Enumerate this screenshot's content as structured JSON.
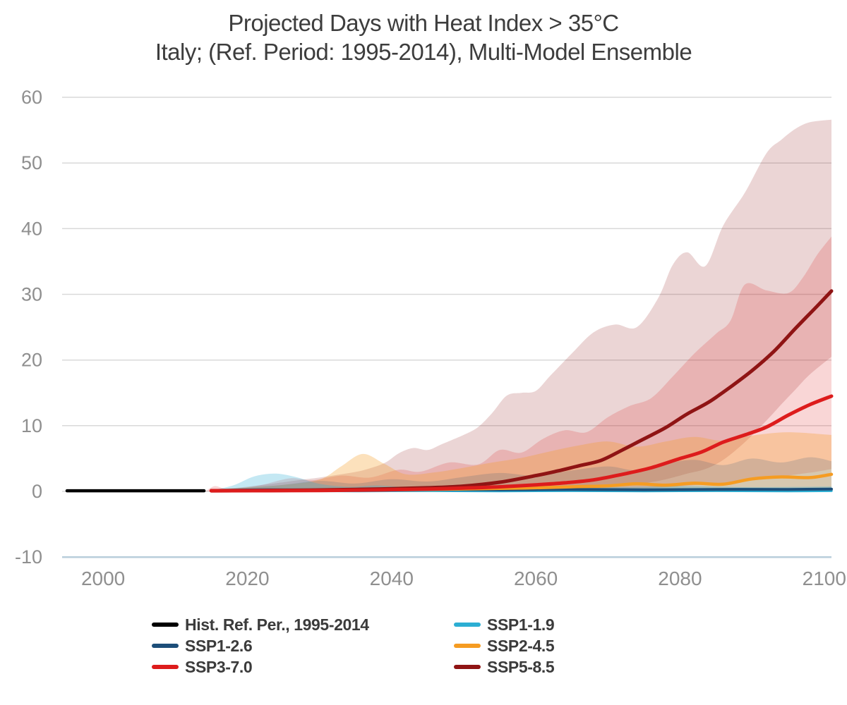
{
  "chart_data": {
    "type": "line",
    "title": "Projected Days with Heat Index > 35°C",
    "subtitle": "Italy; (Ref. Period: 1995-2014), Multi-Model Ensemble",
    "xlabel": "",
    "ylabel": "",
    "xlim": [
      1994.3,
      2101.8
    ],
    "ylim": [
      -10,
      60
    ],
    "x_ticks": [
      2000,
      2020,
      2040,
      2060,
      2080,
      2100
    ],
    "y_ticks": [
      -10,
      0,
      10,
      20,
      30,
      40,
      50,
      60
    ],
    "grid": true,
    "legend_position": "bottom",
    "grid_color": "#d9d9d9",
    "baseline_color": "#b9cedb",
    "tick_label_color": "#8f8f8f",
    "title_color": "#3d3d3d",
    "bands": [
      {
        "id": "band-ssp5-8.5",
        "name": "SSP5-8.5 range",
        "color": "#8f1414",
        "opacity": 0.18,
        "x": [
          2015,
          2019,
          2023,
          2027,
          2030,
          2033,
          2036,
          2039,
          2041,
          2043,
          2045,
          2047,
          2050,
          2052,
          2054,
          2056,
          2058,
          2060,
          2062,
          2065,
          2068,
          2071,
          2074,
          2077,
          2079,
          2081,
          2083.5,
          2086,
          2089,
          2092,
          2094,
          2096,
          2098,
          2101
        ],
        "high": [
          0.3,
          0.6,
          1.1,
          1.7,
          2.1,
          2.6,
          3.2,
          4.3,
          5.8,
          6.6,
          6.3,
          7.2,
          8.6,
          9.8,
          12.0,
          14.6,
          15.0,
          15.3,
          17.6,
          21.0,
          24.2,
          25.4,
          25.0,
          29.5,
          34.5,
          36.4,
          34.3,
          40.5,
          45.5,
          51.5,
          53.5,
          55.2,
          56.2,
          56.6
        ],
        "low": [
          0,
          0,
          0,
          0,
          0,
          0,
          0,
          0,
          0,
          0,
          0,
          0,
          0.1,
          0.12,
          0.15,
          0.18,
          0.2,
          0.25,
          0.3,
          0.45,
          0.6,
          0.8,
          1.1,
          1.6,
          2.1,
          2.7,
          3.4,
          4.8,
          7.5,
          10.8,
          13.2,
          15.5,
          17.8,
          20.5
        ]
      },
      {
        "id": "band-ssp3-7.0",
        "name": "SSP3-7.0 range",
        "color": "#dd1c1c",
        "opacity": 0.18,
        "x": [
          2014.3,
          2015.5,
          2017,
          2019,
          2022,
          2026,
          2029,
          2033,
          2037,
          2041,
          2044,
          2048,
          2052,
          2055,
          2058,
          2061,
          2064,
          2067,
          2070,
          2073,
          2076,
          2079,
          2082,
          2085,
          2087,
          2089,
          2092,
          2095,
          2097,
          2099,
          2101
        ],
        "high": [
          0.1,
          0.8,
          0.4,
          0.5,
          1.0,
          2.0,
          1.7,
          2.4,
          2.1,
          3.3,
          3.0,
          4.4,
          4.1,
          6.3,
          5.9,
          8.0,
          9.3,
          9.0,
          11.3,
          13.0,
          14.2,
          17.5,
          21.0,
          24.0,
          26.0,
          31.5,
          30.6,
          30.2,
          32.5,
          36.0,
          38.8
        ],
        "low": [
          0,
          0,
          0,
          0,
          0,
          0,
          0,
          0,
          0,
          0,
          0,
          0,
          0,
          0,
          0,
          0,
          0,
          0,
          0.2,
          0.35,
          0.5,
          0.7,
          0.95,
          1.2,
          1.35,
          1.55,
          1.9,
          2.4,
          2.7,
          3.0,
          3.4
        ]
      },
      {
        "id": "band-ssp2-4.5",
        "name": "SSP2-4.5 range",
        "color": "#f59c22",
        "opacity": 0.3,
        "x": [
          2015,
          2020,
          2025,
          2030,
          2033,
          2036,
          2039,
          2042,
          2046,
          2050,
          2054,
          2058,
          2062,
          2066,
          2070,
          2074,
          2078,
          2082,
          2086,
          2090,
          2095,
          2101
        ],
        "high": [
          0.3,
          0.6,
          1.0,
          1.8,
          3.8,
          5.7,
          4.2,
          2.6,
          2.9,
          3.6,
          4.4,
          5.1,
          6.1,
          7.0,
          7.6,
          6.8,
          7.6,
          8.3,
          7.7,
          8.5,
          9.0,
          8.6
        ],
        "low": 0
      },
      {
        "id": "band-ssp1-2.6",
        "name": "SSP1-2.6 range",
        "color": "#1d4e79",
        "opacity": 0.17,
        "x": [
          2015,
          2020,
          2025,
          2030,
          2035,
          2040,
          2045,
          2050,
          2055,
          2060,
          2065,
          2070,
          2074,
          2078,
          2082,
          2086,
          2090,
          2094,
          2098,
          2101
        ],
        "high": [
          0.25,
          0.55,
          1.0,
          1.6,
          1.2,
          1.85,
          1.5,
          2.2,
          2.8,
          2.4,
          3.2,
          3.8,
          3.2,
          4.2,
          4.8,
          4.0,
          5.0,
          4.4,
          5.2,
          4.6
        ],
        "low": 0
      },
      {
        "id": "band-ssp1-1.9",
        "name": "SSP1-1.9 range",
        "color": "#2caed3",
        "opacity": 0.28,
        "x": [
          2015,
          2018,
          2021,
          2024,
          2027,
          2030,
          2034,
          2038,
          2043,
          2050,
          2060,
          2070,
          2080,
          2090,
          2101
        ],
        "high": [
          0.2,
          0.9,
          2.3,
          2.7,
          2.1,
          1.15,
          0.7,
          0.9,
          0.6,
          0.7,
          0.85,
          0.65,
          0.8,
          0.65,
          0.75
        ],
        "low": 0
      }
    ],
    "series": [
      {
        "id": "line-ssp1-1.9",
        "name": "SSP1-1.9",
        "color": "#2caed3",
        "width": 3.5,
        "x": [
          2015,
          2025,
          2035,
          2045,
          2055,
          2065,
          2075,
          2085,
          2095,
          2101
        ],
        "y": [
          0.05,
          0.1,
          0.05,
          0.1,
          0.05,
          0.1,
          0.05,
          0.1,
          0.05,
          0.1
        ]
      },
      {
        "id": "line-ssp1-2.6",
        "name": "SSP1-2.6",
        "color": "#1d4e79",
        "width": 4,
        "x": [
          2015,
          2025,
          2035,
          2045,
          2055,
          2065,
          2075,
          2085,
          2095,
          2101
        ],
        "y": [
          0.15,
          0.25,
          0.2,
          0.3,
          0.25,
          0.3,
          0.25,
          0.3,
          0.3,
          0.35
        ]
      },
      {
        "id": "line-ssp2-4.5",
        "name": "SSP2-4.5",
        "color": "#f59c22",
        "width": 4.5,
        "x": [
          2015,
          2025,
          2035,
          2045,
          2055,
          2060,
          2065,
          2070,
          2074,
          2078,
          2082,
          2086,
          2090,
          2094,
          2098,
          2101
        ],
        "y": [
          0.1,
          0.15,
          0.2,
          0.3,
          0.45,
          0.55,
          0.7,
          0.85,
          1.15,
          0.95,
          1.25,
          1.1,
          1.9,
          2.2,
          2.1,
          2.6
        ]
      },
      {
        "id": "line-ssp5-8.5",
        "name": "SSP5-8.5",
        "color": "#8f1414",
        "width": 5,
        "x": [
          2015,
          2025,
          2035,
          2040,
          2045,
          2050,
          2055,
          2060,
          2063,
          2066,
          2069,
          2072,
          2075,
          2078,
          2081,
          2084,
          2087,
          2090,
          2093,
          2096,
          2099,
          2101
        ],
        "y": [
          0.1,
          0.15,
          0.3,
          0.4,
          0.55,
          0.8,
          1.4,
          2.4,
          3.1,
          3.9,
          4.7,
          6.3,
          8.0,
          9.7,
          11.8,
          13.6,
          15.9,
          18.4,
          21.3,
          24.8,
          28.2,
          30.5
        ]
      },
      {
        "id": "line-ssp3-7.0",
        "name": "SSP3-7.0",
        "color": "#dd1c1c",
        "width": 5,
        "x": [
          2015,
          2025,
          2035,
          2045,
          2050,
          2055,
          2060,
          2064,
          2068,
          2072,
          2076,
          2080,
          2083,
          2086,
          2089,
          2092,
          2095,
          2098,
          2101
        ],
        "y": [
          0.1,
          0.12,
          0.18,
          0.35,
          0.5,
          0.7,
          1.0,
          1.3,
          1.75,
          2.6,
          3.6,
          5.0,
          6.0,
          7.5,
          8.6,
          9.8,
          11.6,
          13.2,
          14.5
        ]
      },
      {
        "id": "line-hist",
        "name": "Hist. Ref. Per., 1995-2014",
        "color": "#000000",
        "width": 4.5,
        "x": [
          1995,
          2014
        ],
        "y": [
          0.1,
          0.1
        ]
      }
    ],
    "legend": {
      "items": [
        {
          "label": "Hist. Ref. Per., 1995-2014",
          "color": "#000000"
        },
        {
          "label": "SSP1-1.9",
          "color": "#2caed3"
        },
        {
          "label": "SSP1-2.6",
          "color": "#1d4e79"
        },
        {
          "label": "SSP2-4.5",
          "color": "#f59c22"
        },
        {
          "label": "SSP3-7.0",
          "color": "#dd1c1c"
        },
        {
          "label": "SSP5-8.5",
          "color": "#8f1414"
        }
      ]
    }
  },
  "title": {
    "line1": "Projected Days with Heat Index > 35°C",
    "line2": "Italy; (Ref. Period: 1995-2014), Multi-Model Ensemble"
  }
}
